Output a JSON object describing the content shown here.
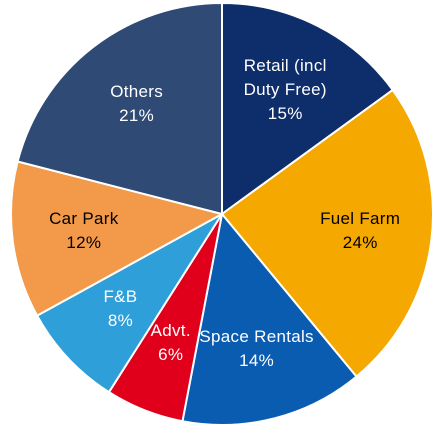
{
  "chart_data": {
    "type": "pie",
    "categories": [
      "Retail (incl Duty Free)",
      "Fuel Farm",
      "Space Rentals",
      "Advt.",
      "F&B",
      "Car Park",
      "Others"
    ],
    "values": [
      15,
      24,
      14,
      6,
      8,
      12,
      21
    ],
    "value_labels": [
      "15%",
      "24%",
      "14%",
      "6%",
      "8%",
      "12%",
      "21%"
    ],
    "colors": [
      "#0d2d6b",
      "#f5a800",
      "#0a5cb0",
      "#e0001b",
      "#2e9fd8",
      "#f39a4a",
      "#2e4a75"
    ]
  }
}
